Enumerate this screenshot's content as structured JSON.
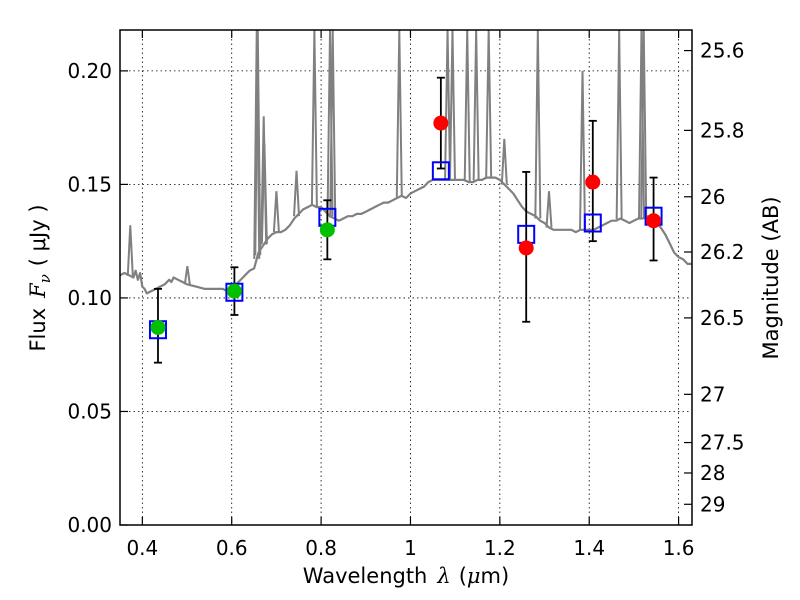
{
  "chart_data": {
    "type": "scatter",
    "xlabel_prefix": "Wavelength",
    "xlabel_symbol": "λ",
    "xlabel_unit_open": "(",
    "xlabel_unit_mu": "μ",
    "xlabel_unit_rest": "m)",
    "ylabel_prefix": "Flux",
    "ylabel_symbol": "F",
    "ylabel_sub": "ν",
    "ylabel_unit": "( μJy )",
    "y2label": "Magnitude (AB)",
    "xlim": [
      0.35,
      1.63
    ],
    "ylim": [
      0.0,
      0.218
    ],
    "grid": true,
    "x_ticks": [
      {
        "value": 0.4,
        "label": "0.4"
      },
      {
        "value": 0.6,
        "label": "0.6"
      },
      {
        "value": 0.8,
        "label": "0.8"
      },
      {
        "value": 1.0,
        "label": "1"
      },
      {
        "value": 1.2,
        "label": "1.2"
      },
      {
        "value": 1.4,
        "label": "1.4"
      },
      {
        "value": 1.6,
        "label": "1.6"
      }
    ],
    "y_ticks": [
      {
        "value": 0.0,
        "label": "0.00"
      },
      {
        "value": 0.05,
        "label": "0.05"
      },
      {
        "value": 0.1,
        "label": "0.10"
      },
      {
        "value": 0.15,
        "label": "0.15"
      },
      {
        "value": 0.2,
        "label": "0.20"
      }
    ],
    "mag_ticks": [
      {
        "value": 25.6,
        "label": "25.6"
      },
      {
        "value": 25.8,
        "label": "25.8"
      },
      {
        "value": 26.0,
        "label": "26"
      },
      {
        "value": 26.2,
        "label": "26.2"
      },
      {
        "value": 26.5,
        "label": "26.5"
      },
      {
        "value": 27.0,
        "label": "27"
      },
      {
        "value": 27.5,
        "label": "27.5"
      },
      {
        "value": 28.0,
        "label": "28"
      },
      {
        "value": 29.0,
        "label": "29"
      }
    ],
    "observed": [
      {
        "x": 0.435,
        "y": 0.087,
        "yerr_low": 0.0715,
        "yerr_high": 0.104,
        "color": "#00c000"
      },
      {
        "x": 0.606,
        "y": 0.103,
        "yerr_low": 0.0925,
        "yerr_high": 0.1135,
        "color": "#00c000"
      },
      {
        "x": 0.814,
        "y": 0.13,
        "yerr_low": 0.117,
        "yerr_high": 0.143,
        "color": "#00c000"
      },
      {
        "x": 1.068,
        "y": 0.177,
        "yerr_low": 0.157,
        "yerr_high": 0.197,
        "color": "#ff0000"
      },
      {
        "x": 1.259,
        "y": 0.122,
        "yerr_low": 0.0895,
        "yerr_high": 0.1555,
        "color": "#ff0000"
      },
      {
        "x": 1.408,
        "y": 0.151,
        "yerr_low": 0.125,
        "yerr_high": 0.178,
        "color": "#ff0000"
      },
      {
        "x": 1.544,
        "y": 0.134,
        "yerr_low": 0.1165,
        "yerr_high": 0.153,
        "color": "#ff0000"
      }
    ],
    "model_bands": [
      {
        "x": 0.435,
        "y": 0.086
      },
      {
        "x": 0.606,
        "y": 0.1025
      },
      {
        "x": 0.814,
        "y": 0.1355
      },
      {
        "x": 1.068,
        "y": 0.156
      },
      {
        "x": 1.259,
        "y": 0.128
      },
      {
        "x": 1.408,
        "y": 0.133
      },
      {
        "x": 1.544,
        "y": 0.136
      }
    ],
    "spectrum": {
      "color": "#808080",
      "points": [
        [
          0.35,
          0.11
        ],
        [
          0.36,
          0.111
        ],
        [
          0.37,
          0.11
        ],
        [
          0.38,
          0.109
        ],
        [
          0.385,
          0.112
        ],
        [
          0.39,
          0.108
        ],
        [
          0.395,
          0.111
        ],
        [
          0.4,
          0.105
        ],
        [
          0.405,
          0.104
        ],
        [
          0.41,
          0.102
        ],
        [
          0.42,
          0.103
        ],
        [
          0.43,
          0.104
        ],
        [
          0.44,
          0.105
        ],
        [
          0.45,
          0.106
        ],
        [
          0.46,
          0.108
        ],
        [
          0.465,
          0.107
        ],
        [
          0.47,
          0.109
        ],
        [
          0.48,
          0.108
        ],
        [
          0.49,
          0.107
        ],
        [
          0.5,
          0.106
        ],
        [
          0.52,
          0.105
        ],
        [
          0.54,
          0.104
        ],
        [
          0.56,
          0.104
        ],
        [
          0.58,
          0.104
        ],
        [
          0.59,
          0.103
        ],
        [
          0.6,
          0.104
        ],
        [
          0.61,
          0.106
        ],
        [
          0.62,
          0.108
        ],
        [
          0.63,
          0.11
        ],
        [
          0.64,
          0.112
        ],
        [
          0.65,
          0.113
        ],
        [
          0.66,
          0.12
        ],
        [
          0.67,
          0.123
        ],
        [
          0.68,
          0.126
        ],
        [
          0.69,
          0.128
        ],
        [
          0.7,
          0.129
        ],
        [
          0.71,
          0.129
        ],
        [
          0.72,
          0.13
        ],
        [
          0.73,
          0.132
        ],
        [
          0.74,
          0.135
        ],
        [
          0.75,
          0.137
        ],
        [
          0.76,
          0.139
        ],
        [
          0.77,
          0.14
        ],
        [
          0.78,
          0.141
        ],
        [
          0.79,
          0.14
        ],
        [
          0.8,
          0.14
        ],
        [
          0.81,
          0.138
        ],
        [
          0.82,
          0.136
        ],
        [
          0.83,
          0.135
        ],
        [
          0.84,
          0.134
        ],
        [
          0.85,
          0.135
        ],
        [
          0.86,
          0.136
        ],
        [
          0.87,
          0.136
        ],
        [
          0.88,
          0.137
        ],
        [
          0.89,
          0.137
        ],
        [
          0.9,
          0.138
        ],
        [
          0.91,
          0.139
        ],
        [
          0.92,
          0.14
        ],
        [
          0.93,
          0.141
        ],
        [
          0.94,
          0.142
        ],
        [
          0.95,
          0.142
        ],
        [
          0.96,
          0.143
        ],
        [
          0.97,
          0.144
        ],
        [
          0.98,
          0.145
        ],
        [
          0.99,
          0.144
        ],
        [
          1.0,
          0.146
        ],
        [
          1.01,
          0.147
        ],
        [
          1.02,
          0.148
        ],
        [
          1.03,
          0.149
        ],
        [
          1.04,
          0.151
        ],
        [
          1.05,
          0.152
        ],
        [
          1.06,
          0.152
        ],
        [
          1.07,
          0.152
        ],
        [
          1.08,
          0.152
        ],
        [
          1.09,
          0.152
        ],
        [
          1.1,
          0.152
        ],
        [
          1.11,
          0.152
        ],
        [
          1.12,
          0.152
        ],
        [
          1.13,
          0.151
        ],
        [
          1.14,
          0.151
        ],
        [
          1.15,
          0.152
        ],
        [
          1.16,
          0.152
        ],
        [
          1.17,
          0.153
        ],
        [
          1.18,
          0.153
        ],
        [
          1.19,
          0.153
        ],
        [
          1.2,
          0.152
        ],
        [
          1.21,
          0.15
        ],
        [
          1.22,
          0.148
        ],
        [
          1.23,
          0.146
        ],
        [
          1.24,
          0.143
        ],
        [
          1.25,
          0.14
        ],
        [
          1.26,
          0.138
        ],
        [
          1.27,
          0.137
        ],
        [
          1.28,
          0.136
        ],
        [
          1.29,
          0.134
        ],
        [
          1.3,
          0.133
        ],
        [
          1.31,
          0.131
        ],
        [
          1.32,
          0.13
        ],
        [
          1.33,
          0.13
        ],
        [
          1.34,
          0.13
        ],
        [
          1.35,
          0.13
        ],
        [
          1.36,
          0.13
        ],
        [
          1.37,
          0.129
        ],
        [
          1.38,
          0.13
        ],
        [
          1.39,
          0.13
        ],
        [
          1.4,
          0.13
        ],
        [
          1.41,
          0.13
        ],
        [
          1.42,
          0.131
        ],
        [
          1.43,
          0.132
        ],
        [
          1.44,
          0.133
        ],
        [
          1.45,
          0.134
        ],
        [
          1.46,
          0.134
        ],
        [
          1.47,
          0.135
        ],
        [
          1.48,
          0.134
        ],
        [
          1.49,
          0.133
        ],
        [
          1.5,
          0.134
        ],
        [
          1.51,
          0.135
        ],
        [
          1.52,
          0.135
        ],
        [
          1.53,
          0.136
        ],
        [
          1.54,
          0.134
        ],
        [
          1.55,
          0.133
        ],
        [
          1.56,
          0.131
        ],
        [
          1.57,
          0.128
        ],
        [
          1.58,
          0.124
        ],
        [
          1.59,
          0.12
        ],
        [
          1.6,
          0.118
        ],
        [
          1.61,
          0.117
        ],
        [
          1.62,
          0.115
        ],
        [
          1.63,
          0.115
        ]
      ],
      "emission_lines": [
        {
          "x": 0.373,
          "peak": 0.132
        },
        {
          "x": 0.5007,
          "peak": 0.114
        },
        {
          "x": 0.656,
          "peak": 0.218
        },
        {
          "x": 0.6583,
          "peak": 0.218
        },
        {
          "x": 0.6716,
          "peak": 0.18
        },
        {
          "x": 0.6731,
          "peak": 0.168
        },
        {
          "x": 0.7,
          "peak": 0.147
        },
        {
          "x": 0.745,
          "peak": 0.156
        },
        {
          "x": 0.785,
          "peak": 0.218
        },
        {
          "x": 0.82,
          "peak": 0.218
        },
        {
          "x": 0.826,
          "peak": 0.218
        },
        {
          "x": 0.975,
          "peak": 0.218
        },
        {
          "x": 1.083,
          "peak": 0.218
        },
        {
          "x": 1.094,
          "peak": 0.218
        },
        {
          "x": 1.127,
          "peak": 0.218
        },
        {
          "x": 1.147,
          "peak": 0.218
        },
        {
          "x": 1.175,
          "peak": 0.218
        },
        {
          "x": 1.21,
          "peak": 0.17
        },
        {
          "x": 1.285,
          "peak": 0.218
        },
        {
          "x": 1.31,
          "peak": 0.147
        },
        {
          "x": 1.385,
          "peak": 0.2
        },
        {
          "x": 1.467,
          "peak": 0.218
        },
        {
          "x": 1.517,
          "peak": 0.218
        },
        {
          "x": 1.522,
          "peak": 0.218
        }
      ]
    }
  }
}
